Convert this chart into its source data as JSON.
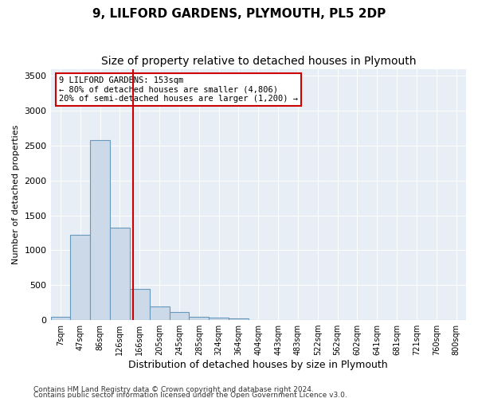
{
  "title": "9, LILFORD GARDENS, PLYMOUTH, PL5 2DP",
  "subtitle": "Size of property relative to detached houses in Plymouth",
  "xlabel": "Distribution of detached houses by size in Plymouth",
  "ylabel": "Number of detached properties",
  "bar_color": "#ccd9e8",
  "bar_edge_color": "#6699bb",
  "annotation_line1": "9 LILFORD GARDENS: 153sqm",
  "annotation_line2": "← 80% of detached houses are smaller (4,806)",
  "annotation_line3": "20% of semi-detached houses are larger (1,200) →",
  "vline_color": "#cc0000",
  "vline_position": 3.67,
  "ylim": [
    0,
    3600
  ],
  "yticks": [
    0,
    500,
    1000,
    1500,
    2000,
    2500,
    3000,
    3500
  ],
  "bins": [
    "7sqm",
    "47sqm",
    "86sqm",
    "126sqm",
    "166sqm",
    "205sqm",
    "245sqm",
    "285sqm",
    "324sqm",
    "364sqm",
    "404sqm",
    "443sqm",
    "483sqm",
    "522sqm",
    "562sqm",
    "602sqm",
    "641sqm",
    "681sqm",
    "721sqm",
    "760sqm",
    "800sqm"
  ],
  "bar_heights": [
    50,
    1220,
    2580,
    1330,
    450,
    190,
    110,
    50,
    30,
    20,
    5,
    0,
    0,
    0,
    0,
    0,
    0,
    0,
    0,
    0,
    0
  ],
  "footer1": "Contains HM Land Registry data © Crown copyright and database right 2024.",
  "footer2": "Contains public sector information licensed under the Open Government Licence v3.0.",
  "plot_bg_color": "#e8eef5"
}
